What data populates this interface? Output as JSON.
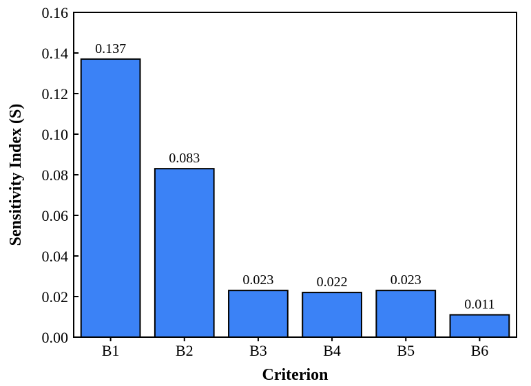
{
  "chart_data": {
    "type": "bar",
    "title": "",
    "xlabel": "Criterion",
    "ylabel": "Sensitivity Index (S)",
    "categories": [
      "B1",
      "B2",
      "B3",
      "B4",
      "B5",
      "B6"
    ],
    "values": [
      0.137,
      0.083,
      0.023,
      0.022,
      0.023,
      0.011
    ],
    "data_labels": [
      "0.137",
      "0.083",
      "0.023",
      "0.022",
      "0.023",
      "0.011"
    ],
    "ylim": [
      0,
      0.16
    ],
    "yticks": [
      0.0,
      0.02,
      0.04,
      0.06,
      0.08,
      0.1,
      0.12,
      0.14,
      0.16
    ],
    "ytick_labels": [
      "0.00",
      "0.02",
      "0.04",
      "0.06",
      "0.08",
      "0.10",
      "0.12",
      "0.14",
      "0.16"
    ],
    "grid": false,
    "legend": "none",
    "colors": {
      "bar_fill": "#3b82f6",
      "bar_edge": "#000000",
      "axis": "#000000"
    }
  }
}
